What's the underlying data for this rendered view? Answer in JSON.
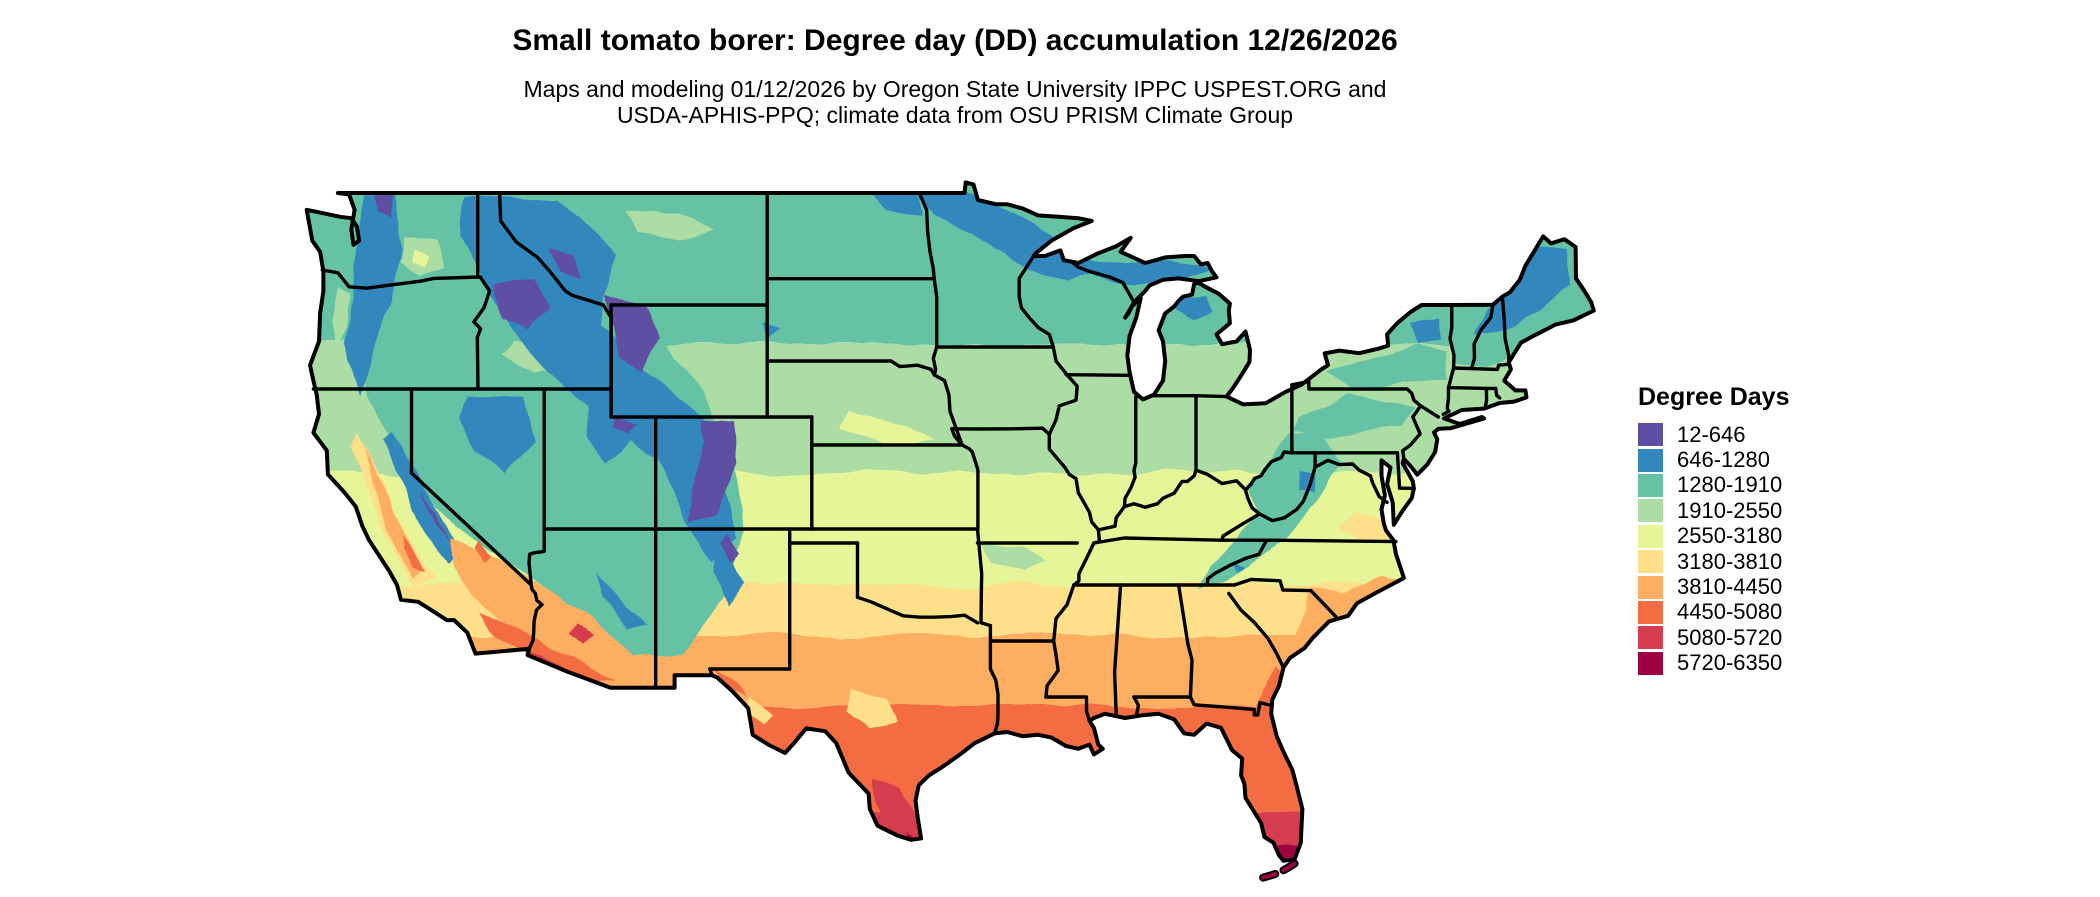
{
  "header": {
    "title": "Small tomato borer: Degree day (DD) accumulation 12/26/2026",
    "subtitle_line1": "Maps and modeling 01/12/2026 by Oregon State University IPPC USPEST.ORG and",
    "subtitle_line2": "USDA-APHIS-PPQ; climate data from OSU PRISM Climate Group"
  },
  "map": {
    "region": "Contiguous United States",
    "border_color": "#000000",
    "water_color": "#ffffff",
    "background": "#ffffff"
  },
  "legend": {
    "title": "Degree Days",
    "items": [
      {
        "label": "12-646",
        "color": "#5e4fa2"
      },
      {
        "label": "646-1280",
        "color": "#3288bd"
      },
      {
        "label": "1280-1910",
        "color": "#66c2a5"
      },
      {
        "label": "1910-2550",
        "color": "#abdda4"
      },
      {
        "label": "2550-3180",
        "color": "#e6f598"
      },
      {
        "label": "3180-3810",
        "color": "#fee08b"
      },
      {
        "label": "3810-4450",
        "color": "#fdae61"
      },
      {
        "label": "4450-5080",
        "color": "#f46d43"
      },
      {
        "label": "5080-5720",
        "color": "#d53e4f"
      },
      {
        "label": "5720-6350",
        "color": "#9e0142"
      }
    ]
  }
}
